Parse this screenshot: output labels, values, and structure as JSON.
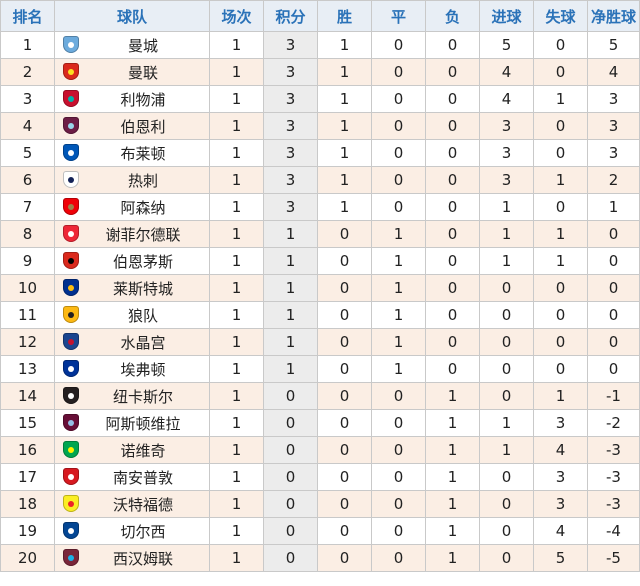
{
  "columns": [
    "排名",
    "球队",
    "场次",
    "积分",
    "胜",
    "平",
    "负",
    "进球",
    "失球",
    "净胜球"
  ],
  "rows": [
    {
      "rank": "1",
      "team": "曼城",
      "icon": "man-city-crest-icon",
      "color": "#6cabdd",
      "accent": "#ffffff",
      "played": "1",
      "points": "3",
      "won": "1",
      "drawn": "0",
      "lost": "0",
      "gf": "5",
      "ga": "0",
      "gd": "5"
    },
    {
      "rank": "2",
      "team": "曼联",
      "icon": "man-united-crest-icon",
      "color": "#da291c",
      "accent": "#fbe122",
      "played": "1",
      "points": "3",
      "won": "1",
      "drawn": "0",
      "lost": "0",
      "gf": "4",
      "ga": "0",
      "gd": "4"
    },
    {
      "rank": "3",
      "team": "利物浦",
      "icon": "liverpool-crest-icon",
      "color": "#c8102e",
      "accent": "#00b2a9",
      "played": "1",
      "points": "3",
      "won": "1",
      "drawn": "0",
      "lost": "0",
      "gf": "4",
      "ga": "1",
      "gd": "3"
    },
    {
      "rank": "4",
      "team": "伯恩利",
      "icon": "burnley-crest-icon",
      "color": "#6c1d45",
      "accent": "#99d6ea",
      "played": "1",
      "points": "3",
      "won": "1",
      "drawn": "0",
      "lost": "0",
      "gf": "3",
      "ga": "0",
      "gd": "3"
    },
    {
      "rank": "5",
      "team": "布莱顿",
      "icon": "brighton-crest-icon",
      "color": "#0057b8",
      "accent": "#ffffff",
      "played": "1",
      "points": "3",
      "won": "1",
      "drawn": "0",
      "lost": "0",
      "gf": "3",
      "ga": "0",
      "gd": "3"
    },
    {
      "rank": "6",
      "team": "热刺",
      "icon": "tottenham-crest-icon",
      "color": "#ffffff",
      "accent": "#132257",
      "played": "1",
      "points": "3",
      "won": "1",
      "drawn": "0",
      "lost": "0",
      "gf": "3",
      "ga": "1",
      "gd": "2"
    },
    {
      "rank": "7",
      "team": "阿森纳",
      "icon": "arsenal-crest-icon",
      "color": "#ef0107",
      "accent": "#9c824a",
      "played": "1",
      "points": "3",
      "won": "1",
      "drawn": "0",
      "lost": "0",
      "gf": "1",
      "ga": "0",
      "gd": "1"
    },
    {
      "rank": "8",
      "team": "谢菲尔德联",
      "icon": "sheffield-united-crest-icon",
      "color": "#ee2737",
      "accent": "#ffffff",
      "played": "1",
      "points": "1",
      "won": "0",
      "drawn": "1",
      "lost": "0",
      "gf": "1",
      "ga": "1",
      "gd": "0"
    },
    {
      "rank": "9",
      "team": "伯恩茅斯",
      "icon": "bournemouth-crest-icon",
      "color": "#da291c",
      "accent": "#000000",
      "played": "1",
      "points": "1",
      "won": "0",
      "drawn": "1",
      "lost": "0",
      "gf": "1",
      "ga": "1",
      "gd": "0"
    },
    {
      "rank": "10",
      "team": "莱斯特城",
      "icon": "leicester-crest-icon",
      "color": "#003090",
      "accent": "#fdbe11",
      "played": "1",
      "points": "1",
      "won": "0",
      "drawn": "1",
      "lost": "0",
      "gf": "0",
      "ga": "0",
      "gd": "0"
    },
    {
      "rank": "11",
      "team": "狼队",
      "icon": "wolves-crest-icon",
      "color": "#fdb913",
      "accent": "#231f20",
      "played": "1",
      "points": "1",
      "won": "0",
      "drawn": "1",
      "lost": "0",
      "gf": "0",
      "ga": "0",
      "gd": "0"
    },
    {
      "rank": "12",
      "team": "水晶宫",
      "icon": "crystal-palace-crest-icon",
      "color": "#1b458f",
      "accent": "#c4122e",
      "played": "1",
      "points": "1",
      "won": "0",
      "drawn": "1",
      "lost": "0",
      "gf": "0",
      "ga": "0",
      "gd": "0"
    },
    {
      "rank": "13",
      "team": "埃弗顿",
      "icon": "everton-crest-icon",
      "color": "#003399",
      "accent": "#ffffff",
      "played": "1",
      "points": "1",
      "won": "0",
      "drawn": "1",
      "lost": "0",
      "gf": "0",
      "ga": "0",
      "gd": "0"
    },
    {
      "rank": "14",
      "team": "纽卡斯尔",
      "icon": "newcastle-crest-icon",
      "color": "#241f20",
      "accent": "#ffffff",
      "played": "1",
      "points": "0",
      "won": "0",
      "drawn": "0",
      "lost": "1",
      "gf": "0",
      "ga": "1",
      "gd": "-1"
    },
    {
      "rank": "15",
      "team": "阿斯顿维拉",
      "icon": "aston-villa-crest-icon",
      "color": "#670e36",
      "accent": "#95bfe5",
      "played": "1",
      "points": "0",
      "won": "0",
      "drawn": "0",
      "lost": "1",
      "gf": "1",
      "ga": "3",
      "gd": "-2"
    },
    {
      "rank": "16",
      "team": "诺维奇",
      "icon": "norwich-crest-icon",
      "color": "#00a650",
      "accent": "#fff200",
      "played": "1",
      "points": "0",
      "won": "0",
      "drawn": "0",
      "lost": "1",
      "gf": "1",
      "ga": "4",
      "gd": "-3"
    },
    {
      "rank": "17",
      "team": "南安普敦",
      "icon": "southampton-crest-icon",
      "color": "#d71920",
      "accent": "#ffffff",
      "played": "1",
      "points": "0",
      "won": "0",
      "drawn": "0",
      "lost": "1",
      "gf": "0",
      "ga": "3",
      "gd": "-3"
    },
    {
      "rank": "18",
      "team": "沃特福德",
      "icon": "watford-crest-icon",
      "color": "#fbee23",
      "accent": "#ed2127",
      "played": "1",
      "points": "0",
      "won": "0",
      "drawn": "0",
      "lost": "1",
      "gf": "0",
      "ga": "3",
      "gd": "-3"
    },
    {
      "rank": "19",
      "team": "切尔西",
      "icon": "chelsea-crest-icon",
      "color": "#034694",
      "accent": "#ffffff",
      "played": "1",
      "points": "0",
      "won": "0",
      "drawn": "0",
      "lost": "1",
      "gf": "0",
      "ga": "4",
      "gd": "-4"
    },
    {
      "rank": "20",
      "team": "西汉姆联",
      "icon": "west-ham-crest-icon",
      "color": "#7a263a",
      "accent": "#1bb1e7",
      "played": "1",
      "points": "0",
      "won": "0",
      "drawn": "0",
      "lost": "1",
      "gf": "0",
      "ga": "5",
      "gd": "-5"
    }
  ],
  "colors": {
    "header_bg": "#e8eef5",
    "header_text": "#2a72b8",
    "stripe": "#fbeee4",
    "points_bg": "#ececec",
    "border": "#c9c9c9"
  }
}
